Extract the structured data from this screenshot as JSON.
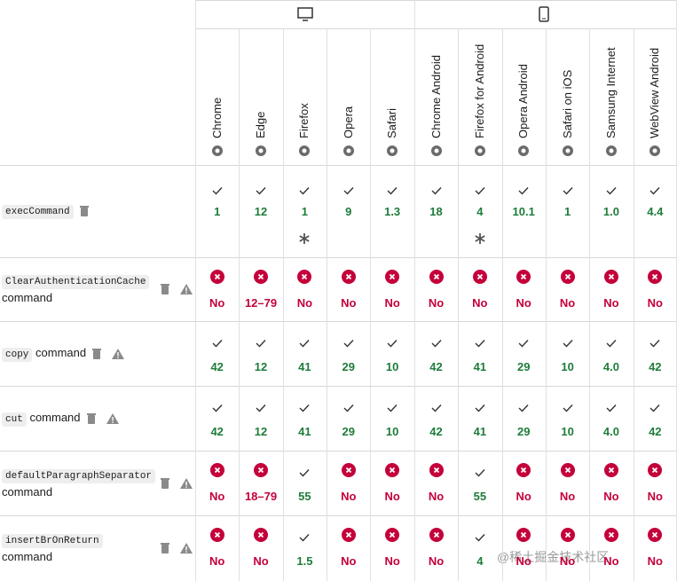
{
  "browsers": [
    "Chrome",
    "Edge",
    "Firefox",
    "Opera",
    "Safari",
    "Chrome Android",
    "Firefox for Android",
    "Opera Android",
    "Safari on iOS",
    "Samsung Internet",
    "WebView Android"
  ],
  "rows": [
    {
      "code": "execCommand",
      "deprecated": true,
      "non_standard": false,
      "cells": [
        {
          "status": "yes",
          "text": "1"
        },
        {
          "status": "yes",
          "text": "12"
        },
        {
          "status": "yes",
          "text": "1",
          "note": true
        },
        {
          "status": "yes",
          "text": "9"
        },
        {
          "status": "yes",
          "text": "1.3"
        },
        {
          "status": "yes",
          "text": "18"
        },
        {
          "status": "yes",
          "text": "4",
          "note": true
        },
        {
          "status": "yes",
          "text": "10.1"
        },
        {
          "status": "yes",
          "text": "1"
        },
        {
          "status": "yes",
          "text": "1.0"
        },
        {
          "status": "yes",
          "text": "4.4"
        }
      ]
    },
    {
      "code": "ClearAuthenticationCache",
      "suffix": "command",
      "deprecated": true,
      "non_standard": true,
      "cells": [
        {
          "status": "no",
          "text": "No"
        },
        {
          "status": "no",
          "text": "12–79"
        },
        {
          "status": "no",
          "text": "No"
        },
        {
          "status": "no",
          "text": "No"
        },
        {
          "status": "no",
          "text": "No"
        },
        {
          "status": "no",
          "text": "No"
        },
        {
          "status": "no",
          "text": "No"
        },
        {
          "status": "no",
          "text": "No"
        },
        {
          "status": "no",
          "text": "No"
        },
        {
          "status": "no",
          "text": "No"
        },
        {
          "status": "no",
          "text": "No"
        }
      ]
    },
    {
      "code": "copy",
      "suffix": "command",
      "deprecated": true,
      "non_standard": true,
      "cells": [
        {
          "status": "yes",
          "text": "42"
        },
        {
          "status": "yes",
          "text": "12"
        },
        {
          "status": "yes",
          "text": "41"
        },
        {
          "status": "yes",
          "text": "29"
        },
        {
          "status": "yes",
          "text": "10"
        },
        {
          "status": "yes",
          "text": "42"
        },
        {
          "status": "yes",
          "text": "41"
        },
        {
          "status": "yes",
          "text": "29"
        },
        {
          "status": "yes",
          "text": "10"
        },
        {
          "status": "yes",
          "text": "4.0"
        },
        {
          "status": "yes",
          "text": "42"
        }
      ]
    },
    {
      "code": "cut",
      "suffix": "command",
      "deprecated": true,
      "non_standard": true,
      "cells": [
        {
          "status": "yes",
          "text": "42"
        },
        {
          "status": "yes",
          "text": "12"
        },
        {
          "status": "yes",
          "text": "41"
        },
        {
          "status": "yes",
          "text": "29"
        },
        {
          "status": "yes",
          "text": "10"
        },
        {
          "status": "yes",
          "text": "42"
        },
        {
          "status": "yes",
          "text": "41"
        },
        {
          "status": "yes",
          "text": "29"
        },
        {
          "status": "yes",
          "text": "10"
        },
        {
          "status": "yes",
          "text": "4.0"
        },
        {
          "status": "yes",
          "text": "42"
        }
      ]
    },
    {
      "code": "defaultParagraphSeparator",
      "suffix": "command",
      "deprecated": true,
      "non_standard": true,
      "cells": [
        {
          "status": "no",
          "text": "No"
        },
        {
          "status": "no",
          "text": "18–79"
        },
        {
          "status": "yes",
          "text": "55"
        },
        {
          "status": "no",
          "text": "No"
        },
        {
          "status": "no",
          "text": "No"
        },
        {
          "status": "no",
          "text": "No"
        },
        {
          "status": "yes",
          "text": "55"
        },
        {
          "status": "no",
          "text": "No"
        },
        {
          "status": "no",
          "text": "No"
        },
        {
          "status": "no",
          "text": "No"
        },
        {
          "status": "no",
          "text": "No"
        }
      ]
    },
    {
      "code": "insertBrOnReturn",
      "suffix": "command",
      "deprecated": true,
      "non_standard": true,
      "cells": [
        {
          "status": "no",
          "text": "No"
        },
        {
          "status": "no",
          "text": "No"
        },
        {
          "status": "yes",
          "text": "1.5"
        },
        {
          "status": "no",
          "text": "No"
        },
        {
          "status": "no",
          "text": "No"
        },
        {
          "status": "no",
          "text": "No"
        },
        {
          "status": "yes",
          "text": "4"
        },
        {
          "status": "no",
          "text": "No"
        },
        {
          "status": "no",
          "text": "No"
        },
        {
          "status": "no",
          "text": "No"
        },
        {
          "status": "no",
          "text": "No"
        }
      ]
    }
  ],
  "watermark": "@稀土掘金技术社区"
}
